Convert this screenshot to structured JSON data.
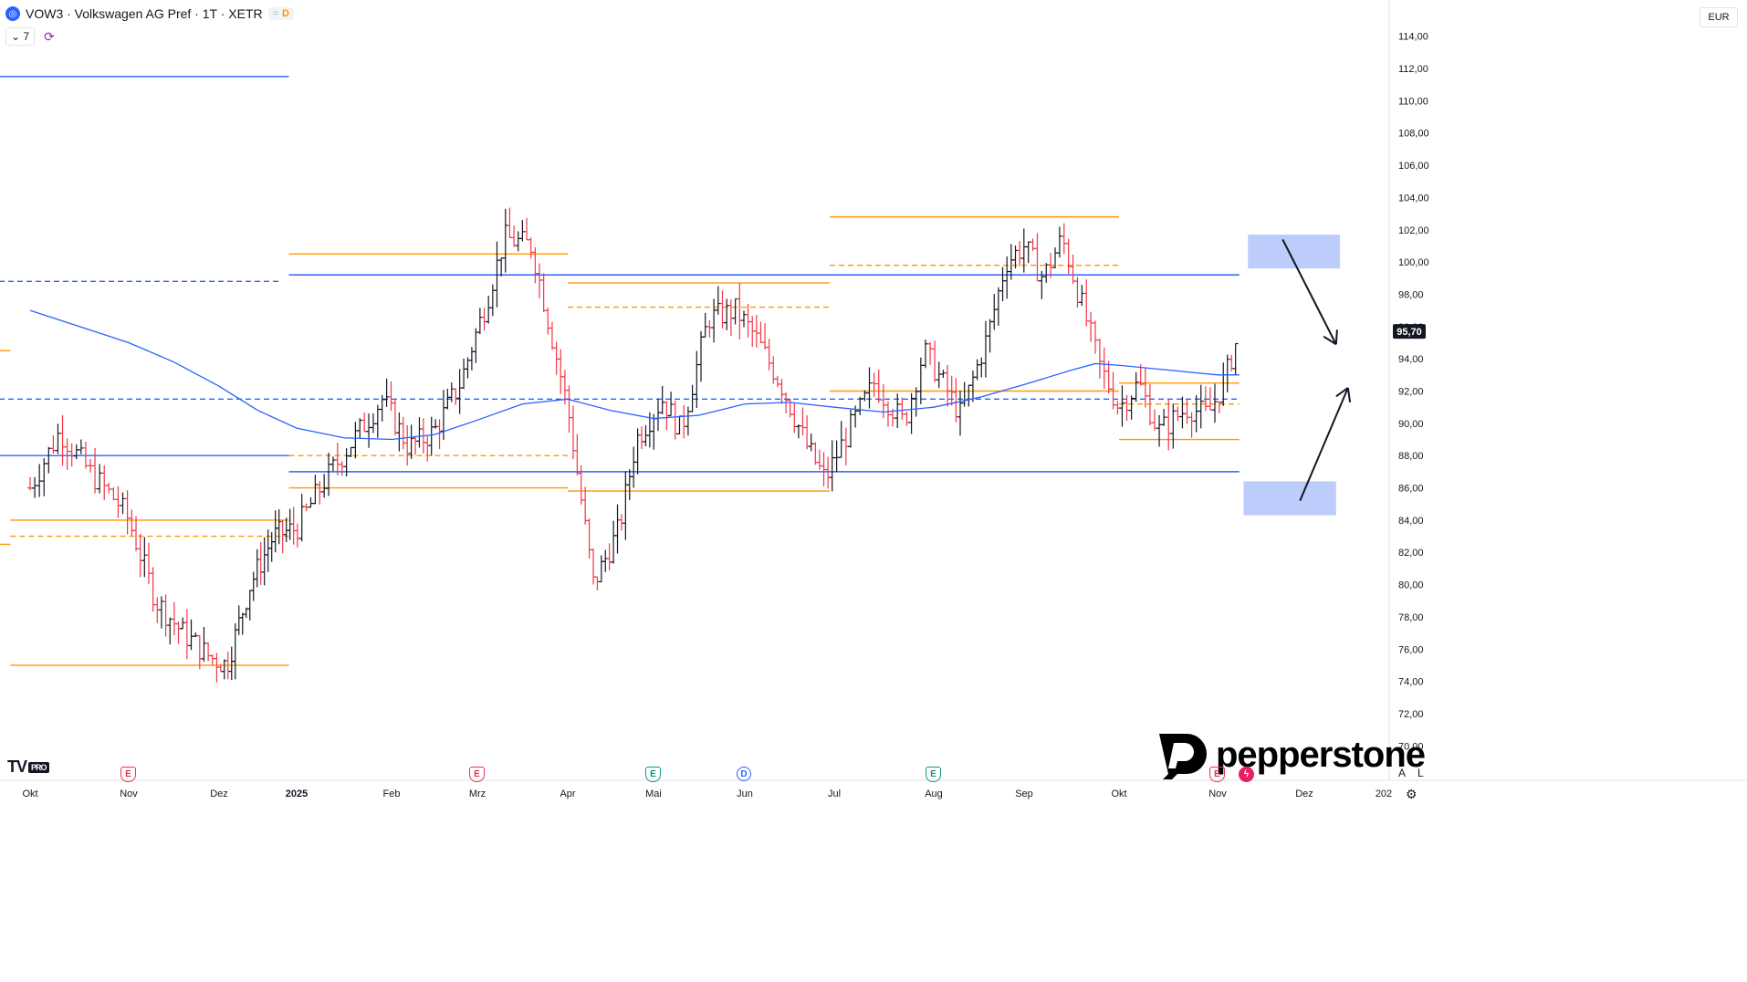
{
  "header": {
    "symbol_icon": "globe-icon",
    "title": "VOW3 · Volkswagen AG Pref · 1T · XETR",
    "badge_dash": "=",
    "badge_d": "D",
    "collapse_label": "7",
    "collapse_icon": "chevron-down-icon",
    "refresh_icon": "refresh-icon"
  },
  "currency": "EUR",
  "branding": {
    "tv_logo": "TV",
    "tv_pro": "PRO",
    "broker": "pepperstone"
  },
  "events": [
    {
      "type": "E",
      "label": "E",
      "month_index": 1,
      "color": "#e8304d"
    },
    {
      "type": "E",
      "label": "E",
      "month_index": 5,
      "color": "#e8304d"
    },
    {
      "type": "E",
      "label": "E",
      "month_index": 7,
      "color": "#089981"
    },
    {
      "type": "D",
      "label": "D",
      "month_index": 8,
      "color": "#2962ff"
    },
    {
      "type": "E",
      "label": "E",
      "month_index": 10,
      "color": "#089981"
    },
    {
      "type": "E",
      "label": "E",
      "month_index": 13,
      "color": "#e8304d"
    },
    {
      "type": "S",
      "label": "ϟ",
      "month_index": 13,
      "color": "#e91e63"
    }
  ],
  "scale_buttons": {
    "auto": "A",
    "log": "L",
    "settings_icon": "gear-icon"
  },
  "chart_data": {
    "type": "ohlc",
    "title": "VOW3 · Volkswagen AG Pref · 1T · XETR",
    "ylim": [
      69,
      115
    ],
    "yticks": [
      70,
      72,
      74,
      76,
      78,
      80,
      82,
      84,
      86,
      88,
      90,
      92,
      94,
      96,
      98,
      100,
      102,
      104,
      106,
      108,
      110,
      112,
      114
    ],
    "ytick_labels": [
      "70,00",
      "72,00",
      "74,00",
      "76,00",
      "78,00",
      "80,00",
      "82,00",
      "84,00",
      "86,00",
      "88,00",
      "90,00",
      "92,00",
      "94,00",
      "96,00",
      "98,00",
      "100,00",
      "102,00",
      "104,00",
      "106,00",
      "108,00",
      "110,00",
      "112,00",
      "114,00"
    ],
    "x_axis": {
      "months": [
        "Okt",
        "Nov",
        "Dez",
        "2025",
        "Feb",
        "Mrz",
        "Apr",
        "Mai",
        "Jun",
        "Jul",
        "Aug",
        "Sep",
        "Okt",
        "Nov",
        "Dez",
        "202"
      ],
      "bold_index": 3
    },
    "price_colors": {
      "up": "#131722",
      "down": "#f23645"
    },
    "last_price": {
      "value": 95.7,
      "label": "95,70"
    },
    "price_path": [
      {
        "m": 0.0,
        "p": 86.0
      },
      {
        "m": 0.3,
        "p": 89.5
      },
      {
        "m": 0.6,
        "p": 87.0
      },
      {
        "m": 0.9,
        "p": 85.0
      },
      {
        "m": 1.0,
        "p": 84.0
      },
      {
        "m": 1.3,
        "p": 79.0
      },
      {
        "m": 1.6,
        "p": 77.0
      },
      {
        "m": 1.9,
        "p": 75.5
      },
      {
        "m": 2.1,
        "p": 75.0
      },
      {
        "m": 2.4,
        "p": 80.0
      },
      {
        "m": 2.7,
        "p": 83.0
      },
      {
        "m": 3.0,
        "p": 83.5
      },
      {
        "m": 3.3,
        "p": 86.5
      },
      {
        "m": 3.6,
        "p": 89.0
      },
      {
        "m": 3.9,
        "p": 91.5
      },
      {
        "m": 4.2,
        "p": 88.5
      },
      {
        "m": 4.5,
        "p": 89.5
      },
      {
        "m": 4.8,
        "p": 92.5
      },
      {
        "m": 5.1,
        "p": 97.5
      },
      {
        "m": 5.3,
        "p": 101.5
      },
      {
        "m": 5.6,
        "p": 101.0
      },
      {
        "m": 5.8,
        "p": 96.0
      },
      {
        "m": 6.0,
        "p": 91.0
      },
      {
        "m": 6.15,
        "p": 85.5
      },
      {
        "m": 6.3,
        "p": 80.0
      },
      {
        "m": 6.6,
        "p": 83.5
      },
      {
        "m": 6.8,
        "p": 89.0
      },
      {
        "m": 7.1,
        "p": 91.5
      },
      {
        "m": 7.3,
        "p": 89.5
      },
      {
        "m": 7.6,
        "p": 96.5
      },
      {
        "m": 7.9,
        "p": 97.0
      },
      {
        "m": 8.1,
        "p": 95.5
      },
      {
        "m": 8.4,
        "p": 92.5
      },
      {
        "m": 8.7,
        "p": 88.5
      },
      {
        "m": 8.9,
        "p": 86.5
      },
      {
        "m": 9.1,
        "p": 89.0
      },
      {
        "m": 9.4,
        "p": 92.5
      },
      {
        "m": 9.7,
        "p": 90.0
      },
      {
        "m": 9.9,
        "p": 94.5
      },
      {
        "m": 10.1,
        "p": 92.5
      },
      {
        "m": 10.3,
        "p": 90.5
      },
      {
        "m": 10.6,
        "p": 95.5
      },
      {
        "m": 10.8,
        "p": 100.0
      },
      {
        "m": 11.0,
        "p": 101.0
      },
      {
        "m": 11.2,
        "p": 99.0
      },
      {
        "m": 11.4,
        "p": 101.5
      },
      {
        "m": 11.6,
        "p": 97.5
      },
      {
        "m": 11.8,
        "p": 93.5
      },
      {
        "m": 12.0,
        "p": 91.0
      },
      {
        "m": 12.2,
        "p": 92.5
      },
      {
        "m": 12.4,
        "p": 89.5
      },
      {
        "m": 12.7,
        "p": 91.0
      },
      {
        "m": 12.9,
        "p": 90.5
      },
      {
        "m": 13.1,
        "p": 93.0
      },
      {
        "m": 13.25,
        "p": 95.7
      }
    ],
    "moving_average": {
      "color": "#2962ff",
      "points": [
        {
          "m": 0.0,
          "p": 97.0
        },
        {
          "m": 0.5,
          "p": 96.0
        },
        {
          "m": 1.0,
          "p": 95.0
        },
        {
          "m": 1.5,
          "p": 93.8
        },
        {
          "m": 2.0,
          "p": 92.3
        },
        {
          "m": 2.5,
          "p": 90.8
        },
        {
          "m": 3.0,
          "p": 89.7
        },
        {
          "m": 3.5,
          "p": 89.1
        },
        {
          "m": 4.0,
          "p": 89.0
        },
        {
          "m": 4.5,
          "p": 89.3
        },
        {
          "m": 5.0,
          "p": 90.2
        },
        {
          "m": 5.5,
          "p": 91.2
        },
        {
          "m": 6.0,
          "p": 91.5
        },
        {
          "m": 6.5,
          "p": 90.8
        },
        {
          "m": 7.0,
          "p": 90.3
        },
        {
          "m": 7.5,
          "p": 90.5
        },
        {
          "m": 8.0,
          "p": 91.2
        },
        {
          "m": 8.5,
          "p": 91.3
        },
        {
          "m": 9.0,
          "p": 91.0
        },
        {
          "m": 9.5,
          "p": 90.7
        },
        {
          "m": 10.0,
          "p": 91.0
        },
        {
          "m": 10.5,
          "p": 91.6
        },
        {
          "m": 11.0,
          "p": 92.4
        },
        {
          "m": 11.5,
          "p": 93.3
        },
        {
          "m": 11.75,
          "p": 93.7
        },
        {
          "m": 12.0,
          "p": 93.6
        },
        {
          "m": 12.5,
          "p": 93.3
        },
        {
          "m": 13.0,
          "p": 93.0
        },
        {
          "m": 13.25,
          "p": 93.0
        }
      ]
    },
    "drawings": {
      "hlines": [
        {
          "m0": -0.5,
          "m1": 2.9,
          "p": 111.5,
          "color": "#2962ff",
          "style": "solid"
        },
        {
          "m0": -0.5,
          "m1": 2.8,
          "p": 98.8,
          "color": "#2962ff",
          "style": "dashed"
        },
        {
          "m0": -0.5,
          "m1": -0.2,
          "p": 94.5,
          "color": "#ff9800",
          "style": "solid"
        },
        {
          "m0": -0.5,
          "m1": 2.9,
          "p": 88.0,
          "color": "#2962ff",
          "style": "solid"
        },
        {
          "m0": -0.5,
          "m1": -0.2,
          "p": 82.5,
          "color": "#ff9800",
          "style": "solid"
        },
        {
          "m0": -0.2,
          "m1": 2.9,
          "p": 84.0,
          "color": "#ff9800",
          "style": "solid"
        },
        {
          "m0": -0.2,
          "m1": 2.9,
          "p": 83.0,
          "color": "#ff9800",
          "style": "dashed"
        },
        {
          "m0": -0.2,
          "m1": 2.9,
          "p": 75.0,
          "color": "#ff9800",
          "style": "solid"
        },
        {
          "m0": 2.9,
          "m1": 6.0,
          "p": 100.5,
          "color": "#ff9800",
          "style": "solid"
        },
        {
          "m0": 2.9,
          "m1": 13.25,
          "p": 99.2,
          "color": "#2962ff",
          "style": "solid"
        },
        {
          "m0": -0.5,
          "m1": 13.25,
          "p": 91.5,
          "color": "#2962ff",
          "style": "dashed"
        },
        {
          "m0": 2.9,
          "m1": 6.0,
          "p": 88.0,
          "color": "#ff9800",
          "style": "dashed"
        },
        {
          "m0": 2.9,
          "m1": 13.25,
          "p": 87.0,
          "color": "#2962ff",
          "style": "solid"
        },
        {
          "m0": 2.9,
          "m1": 6.0,
          "p": 86.0,
          "color": "#ff9800",
          "style": "solid"
        },
        {
          "m0": 6.0,
          "m1": 8.95,
          "p": 98.7,
          "color": "#ff9800",
          "style": "solid"
        },
        {
          "m0": 6.0,
          "m1": 8.95,
          "p": 97.2,
          "color": "#ff9800",
          "style": "dashed"
        },
        {
          "m0": 6.0,
          "m1": 8.95,
          "p": 85.8,
          "color": "#ff9800",
          "style": "solid"
        },
        {
          "m0": 8.95,
          "m1": 12.0,
          "p": 102.8,
          "color": "#ff9800",
          "style": "solid"
        },
        {
          "m0": 8.95,
          "m1": 12.0,
          "p": 99.8,
          "color": "#ff9800",
          "style": "dashed"
        },
        {
          "m0": 8.95,
          "m1": 12.0,
          "p": 92.0,
          "color": "#ff9800",
          "style": "solid"
        },
        {
          "m0": 12.0,
          "m1": 13.25,
          "p": 92.5,
          "color": "#ff9800",
          "style": "solid"
        },
        {
          "m0": 12.0,
          "m1": 13.25,
          "p": 91.2,
          "color": "#ff9800",
          "style": "dashed"
        },
        {
          "m0": 12.0,
          "m1": 13.25,
          "p": 89.0,
          "color": "#ff9800",
          "style": "solid"
        }
      ],
      "zones": [
        {
          "m0": 13.35,
          "m1": 14.45,
          "p_top": 101.7,
          "p_bottom": 99.6,
          "color": "#bcccfb"
        },
        {
          "m0": 13.3,
          "m1": 14.4,
          "p_top": 86.4,
          "p_bottom": 84.3,
          "color": "#bcccfb"
        }
      ],
      "arrows": [
        {
          "m0": 13.75,
          "p0": 101.4,
          "m1": 14.4,
          "p1": 94.9
        },
        {
          "m0": 13.95,
          "p0": 85.2,
          "m1": 14.55,
          "p1": 92.2
        }
      ]
    }
  }
}
